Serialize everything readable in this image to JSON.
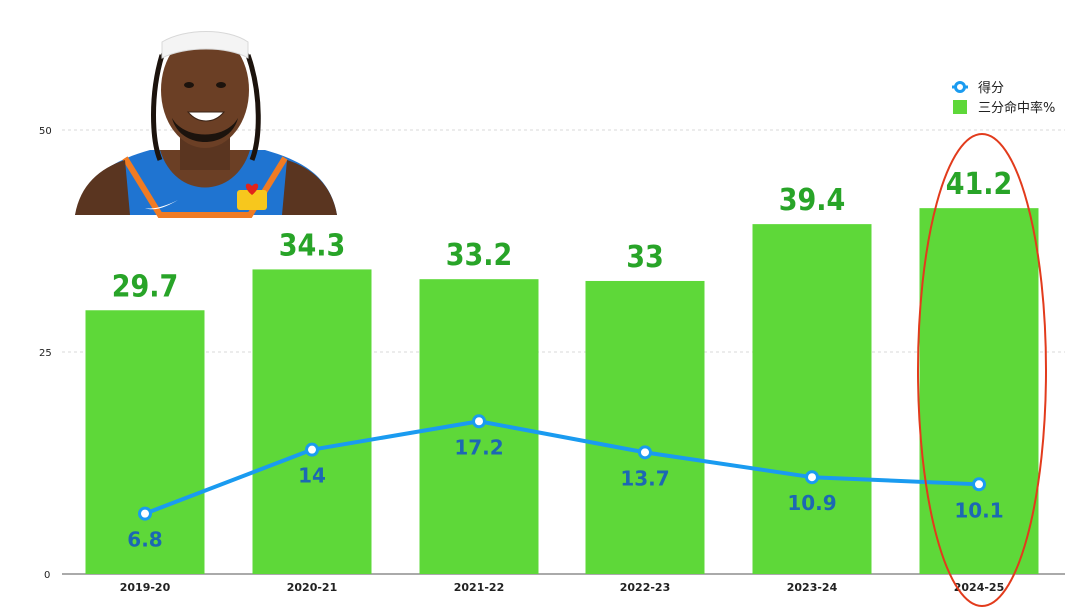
{
  "chart_data": {
    "type": "bar",
    "categories": [
      "2019-20",
      "2020-21",
      "2021-22",
      "2022-23",
      "2023-24",
      "2024-25"
    ],
    "series": [
      {
        "name": "三分命中率%",
        "type": "bar",
        "values": [
          29.7,
          34.3,
          33.2,
          33,
          39.4,
          41.2
        ],
        "color": "#5ed839"
      },
      {
        "name": "得分",
        "type": "line",
        "values": [
          6.8,
          14,
          17.2,
          13.7,
          10.9,
          10.1
        ],
        "color": "#1a9bf0"
      }
    ],
    "y_ticks": [
      "0",
      "25",
      "50"
    ],
    "ylim": [
      0,
      50
    ],
    "legend_position": "top-right",
    "highlight": "2024-25",
    "grid": "dashed horizontal"
  },
  "colors": {
    "bar": "#5ed839",
    "bar_label": "#28a428",
    "line": "#1a9bf0",
    "point_label": "#1c68b3",
    "highlight_ellipse": "#e23b1c"
  },
  "image": {
    "subject": "player-headshot"
  }
}
